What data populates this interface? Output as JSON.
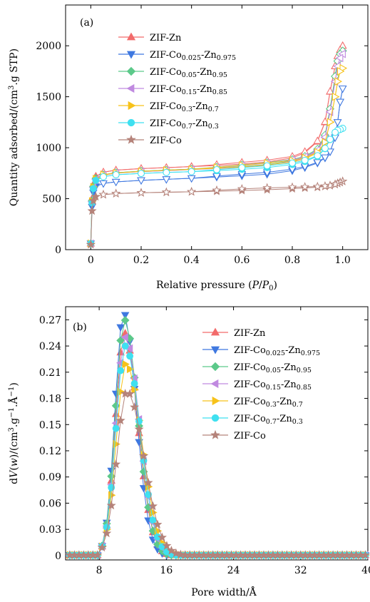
{
  "chart_data": [
    {
      "type": "scatter",
      "panel_tag": "(a)",
      "xlabel": "Relative pressure (P/P0)",
      "ylabel": "Quantity adsorbed/(cm3.g STP)",
      "xlim": [
        -0.1,
        1.1
      ],
      "ylim": [
        0,
        2400
      ],
      "xticks": [
        "0",
        "0.2",
        "0.4",
        "0.6",
        "0.8",
        "1.0"
      ],
      "xtick_values": [
        0,
        0.2,
        0.4,
        0.6,
        0.8,
        1.0
      ],
      "yticks": [
        "0",
        "500",
        "1000",
        "1500",
        "2000"
      ],
      "ytick_values": [
        0,
        500,
        1000,
        1500,
        2000
      ],
      "legend_position": "top-left",
      "series": [
        {
          "name": "ZIF-Zn",
          "label_base": "ZIF-Zn",
          "label_parts": [],
          "color": "#f26b6b",
          "marker": "triangle-up",
          "x": [
            0.0,
            0.005,
            0.01,
            0.02,
            0.05,
            0.1,
            0.2,
            0.3,
            0.4,
            0.5,
            0.6,
            0.7,
            0.8,
            0.85,
            0.9,
            0.93,
            0.95,
            0.97,
            0.98,
            0.99,
            1.0
          ],
          "y": [
            60,
            500,
            640,
            720,
            760,
            780,
            795,
            805,
            815,
            825,
            840,
            860,
            900,
            950,
            1060,
            1250,
            1550,
            1800,
            1900,
            1960,
            2000
          ]
        },
        {
          "name": "ZIF-Co0.025-Zn0.975",
          "label_base": "ZIF-Co",
          "label_parts": [
            "0.025",
            "-Zn",
            "0.975"
          ],
          "color": "#3f78e0",
          "marker": "triangle-down",
          "x": [
            0.0,
            0.005,
            0.01,
            0.02,
            0.05,
            0.1,
            0.2,
            0.3,
            0.4,
            0.5,
            0.6,
            0.7,
            0.8,
            0.85,
            0.9,
            0.93,
            0.95,
            0.97,
            0.98,
            0.99,
            1.0
          ],
          "y": [
            60,
            420,
            560,
            620,
            650,
            665,
            680,
            690,
            700,
            712,
            725,
            740,
            775,
            805,
            850,
            900,
            960,
            1100,
            1250,
            1450,
            1580
          ]
        },
        {
          "name": "ZIF-Co0.05-Zn0.95",
          "label_base": "ZIF-Co",
          "label_parts": [
            "0.05",
            "-Zn",
            "0.95"
          ],
          "color": "#5cc98a",
          "marker": "diamond",
          "x": [
            0.0,
            0.005,
            0.01,
            0.02,
            0.05,
            0.1,
            0.2,
            0.3,
            0.4,
            0.5,
            0.6,
            0.7,
            0.8,
            0.85,
            0.9,
            0.93,
            0.95,
            0.97,
            0.98,
            0.99,
            1.0
          ],
          "y": [
            60,
            480,
            620,
            700,
            735,
            755,
            770,
            780,
            790,
            800,
            815,
            835,
            870,
            905,
            980,
            1120,
            1380,
            1700,
            1850,
            1920,
            1950
          ]
        },
        {
          "name": "ZIF-Co0.15-Zn0.85",
          "label_base": "ZIF-Co",
          "label_parts": [
            "0.15",
            "-Zn",
            "0.85"
          ],
          "color": "#c08ae0",
          "marker": "triangle-left",
          "x": [
            0.0,
            0.005,
            0.01,
            0.02,
            0.05,
            0.1,
            0.2,
            0.3,
            0.4,
            0.5,
            0.6,
            0.7,
            0.8,
            0.85,
            0.9,
            0.93,
            0.95,
            0.97,
            0.98,
            0.99,
            1.0
          ],
          "y": [
            60,
            470,
            610,
            690,
            730,
            750,
            765,
            775,
            785,
            795,
            810,
            830,
            865,
            900,
            970,
            1100,
            1350,
            1650,
            1800,
            1880,
            1920
          ]
        },
        {
          "name": "ZIF-Co0.3-Zn0.7",
          "label_base": "ZIF-Co",
          "label_parts": [
            "0.3",
            "-Zn",
            "0.7"
          ],
          "color": "#f7c21a",
          "marker": "triangle-right",
          "x": [
            0.0,
            0.005,
            0.01,
            0.02,
            0.05,
            0.1,
            0.2,
            0.3,
            0.4,
            0.5,
            0.6,
            0.7,
            0.8,
            0.85,
            0.9,
            0.93,
            0.95,
            0.97,
            0.98,
            0.99,
            1.0
          ],
          "y": [
            60,
            475,
            615,
            695,
            735,
            752,
            768,
            778,
            788,
            798,
            812,
            832,
            860,
            890,
            950,
            1050,
            1250,
            1500,
            1650,
            1750,
            1780
          ]
        },
        {
          "name": "ZIF-Co0.7-Zn0.3",
          "label_base": "ZIF-Co",
          "label_parts": [
            "0.7",
            "-Zn",
            "0.3"
          ],
          "color": "#3fe0f0",
          "marker": "circle",
          "x": [
            0.0,
            0.005,
            0.01,
            0.02,
            0.05,
            0.1,
            0.2,
            0.3,
            0.4,
            0.5,
            0.6,
            0.7,
            0.8,
            0.85,
            0.9,
            0.93,
            0.95,
            0.97,
            0.98,
            0.99,
            1.0
          ],
          "y": [
            60,
            460,
            600,
            680,
            715,
            735,
            748,
            757,
            765,
            775,
            788,
            805,
            835,
            865,
            915,
            990,
            1080,
            1150,
            1170,
            1180,
            1190
          ]
        },
        {
          "name": "ZIF-Co",
          "label_base": "ZIF-Co",
          "label_parts": [],
          "color": "#b5837a",
          "marker": "star",
          "x": [
            0.0,
            0.005,
            0.01,
            0.02,
            0.05,
            0.1,
            0.2,
            0.3,
            0.4,
            0.5,
            0.6,
            0.7,
            0.8,
            0.85,
            0.9,
            0.93,
            0.95,
            0.97,
            0.98,
            0.99,
            1.0
          ],
          "y": [
            50,
            380,
            480,
            520,
            540,
            550,
            558,
            563,
            568,
            573,
            580,
            588,
            598,
            605,
            612,
            620,
            628,
            640,
            650,
            660,
            670
          ]
        }
      ]
    },
    {
      "type": "scatter",
      "panel_tag": "(b)",
      "xlabel": "Pore width/Å",
      "ylabel": "dV(w)/(cm3.g-1.Å-1)",
      "xlim": [
        4,
        40
      ],
      "ylim": [
        -0.005,
        0.285
      ],
      "xticks": [
        "8",
        "16",
        "24",
        "32",
        "40"
      ],
      "xtick_values": [
        8,
        16,
        24,
        32,
        40
      ],
      "yticks": [
        "0",
        "0.03",
        "0.06",
        "0.09",
        "0.12",
        "0.15",
        "0.18",
        "0.21",
        "0.24",
        "0.27"
      ],
      "ytick_values": [
        0,
        0.03,
        0.06,
        0.09,
        0.12,
        0.15,
        0.18,
        0.21,
        0.24,
        0.27
      ],
      "legend_position": "top-right",
      "series": [
        {
          "name": "ZIF-Zn",
          "label_base": "ZIF-Zn",
          "label_parts": [],
          "color": "#f26b6b",
          "marker": "triangle-up",
          "peak": 0.255,
          "center": 11.0,
          "sigma_left": 1.05,
          "sigma_right": 1.6
        },
        {
          "name": "ZIF-Co0.025-Zn0.975",
          "label_base": "ZIF-Co",
          "label_parts": [
            "0.025",
            "-Zn",
            "0.975"
          ],
          "color": "#3f78e0",
          "marker": "triangle-down",
          "peak": 0.278,
          "center": 10.9,
          "sigma_left": 1.0,
          "sigma_right": 1.5
        },
        {
          "name": "ZIF-Co0.05-Zn0.95",
          "label_base": "ZIF-Co",
          "label_parts": [
            "0.05",
            "-Zn",
            "0.95"
          ],
          "color": "#5cc98a",
          "marker": "diamond",
          "peak": 0.27,
          "center": 11.0,
          "sigma_left": 1.05,
          "sigma_right": 1.6
        },
        {
          "name": "ZIF-Co0.15-Zn0.85",
          "label_base": "ZIF-Co",
          "label_parts": [
            "0.15",
            "-Zn",
            "0.85"
          ],
          "color": "#c08ae0",
          "marker": "triangle-left",
          "peak": 0.25,
          "center": 11.1,
          "sigma_left": 1.1,
          "sigma_right": 1.7
        },
        {
          "name": "ZIF-Co0.3-Zn0.7",
          "label_base": "ZIF-Co",
          "label_parts": [
            "0.3",
            "-Zn",
            "0.7"
          ],
          "color": "#f7c21a",
          "marker": "triangle-right",
          "peak": 0.22,
          "center": 11.2,
          "sigma_left": 1.15,
          "sigma_right": 1.85
        },
        {
          "name": "ZIF-Co0.7-Zn0.3",
          "label_base": "ZIF-Co",
          "label_parts": [
            "0.7",
            "-Zn",
            "0.3"
          ],
          "color": "#3fe0f0",
          "marker": "circle",
          "peak": 0.24,
          "center": 11.1,
          "sigma_left": 1.1,
          "sigma_right": 1.75
        },
        {
          "name": "ZIF-Co",
          "label_base": "ZIF-Co",
          "label_parts": [],
          "color": "#b5837a",
          "marker": "star",
          "peak": 0.188,
          "center": 11.3,
          "sigma_left": 1.2,
          "sigma_right": 2.0
        }
      ]
    }
  ]
}
